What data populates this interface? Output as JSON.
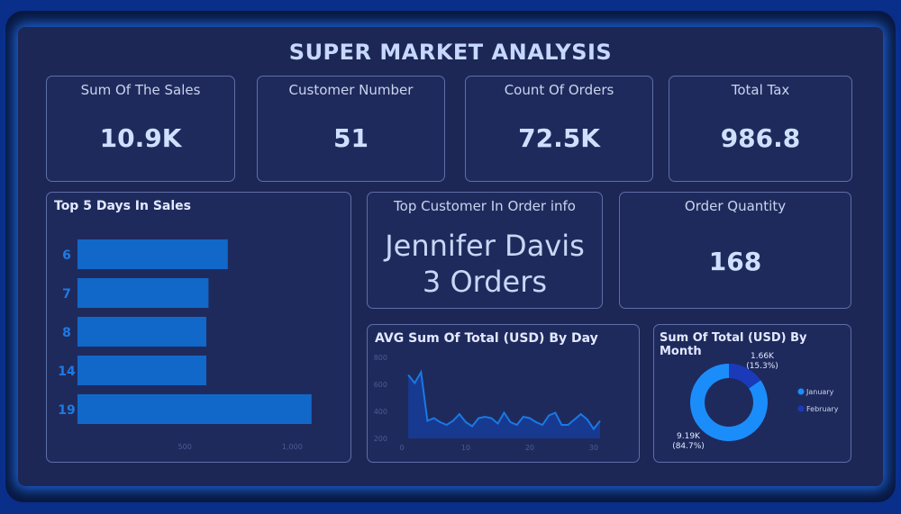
{
  "title": "SUPER MARKET ANALYSIS",
  "kpis": [
    {
      "label": "Sum Of The Sales",
      "value": "10.9K"
    },
    {
      "label": "Customer Number",
      "value": "51"
    },
    {
      "label": "Count Of Orders",
      "value": "72.5K"
    },
    {
      "label": "Total Tax",
      "value": "986.8"
    }
  ],
  "top_customer": {
    "label": "Top Customer In Order info",
    "name": "Jennifer Davis",
    "orders": "3 Orders"
  },
  "order_quantity": {
    "label": "Order Quantity",
    "value": "168"
  },
  "colors": {
    "bar": "#1168c9",
    "line": "#1979e6",
    "donut_jan": "#1b8dfb",
    "donut_feb": "#1a3aba"
  },
  "chart_data": [
    {
      "type": "bar",
      "orientation": "horizontal",
      "title": "Top 5 Days In Sales",
      "categories": [
        "6",
        "7",
        "8",
        "14",
        "19"
      ],
      "values": [
        700,
        610,
        600,
        600,
        1090
      ],
      "xlim": [
        0,
        1200
      ],
      "x_ticks": [
        "500",
        "1,000"
      ],
      "x_tick_values": [
        500,
        1000
      ]
    },
    {
      "type": "area",
      "title": "AVG Sum Of Total (USD) By Day",
      "x": [
        1,
        2,
        3,
        4,
        5,
        6,
        7,
        8,
        9,
        10,
        11,
        12,
        13,
        14,
        15,
        16,
        17,
        18,
        19,
        20,
        21,
        22,
        23,
        24,
        25,
        26,
        27,
        28,
        29,
        30,
        31
      ],
      "values": [
        670,
        610,
        690,
        330,
        350,
        320,
        300,
        330,
        380,
        320,
        290,
        350,
        360,
        350,
        310,
        390,
        320,
        300,
        360,
        350,
        320,
        300,
        370,
        390,
        300,
        300,
        340,
        380,
        340,
        270,
        330
      ],
      "xlim": [
        0,
        31
      ],
      "ylim": [
        200,
        800
      ],
      "x_ticks": [
        "0",
        "10",
        "20",
        "30"
      ],
      "x_tick_values": [
        0,
        10,
        20,
        30
      ],
      "y_ticks": [
        "200",
        "400",
        "600",
        "800"
      ],
      "y_tick_values": [
        200,
        400,
        600,
        800
      ]
    },
    {
      "type": "pie",
      "donut": true,
      "title": "Sum Of Total (USD) By Month",
      "labels": [
        "January",
        "February"
      ],
      "values": [
        9.19,
        1.66
      ],
      "data_labels": [
        {
          "value": "9.19K",
          "pct": "(84.7%)"
        },
        {
          "value": "1.66K",
          "pct": "(15.3%)"
        }
      ],
      "legend": "right"
    }
  ]
}
